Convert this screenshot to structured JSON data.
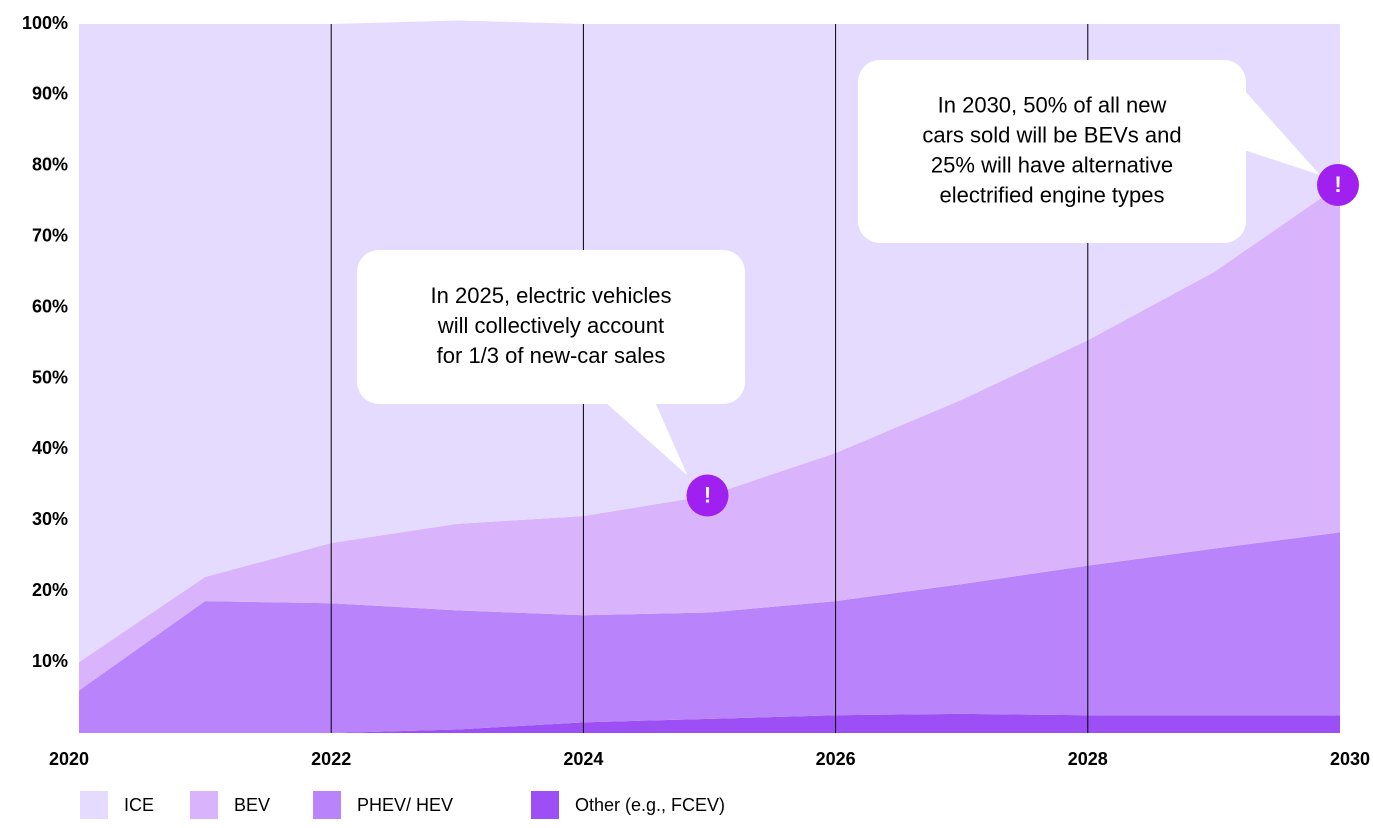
{
  "chart_data": {
    "type": "stacked-area",
    "x": [
      2020,
      2021,
      2022,
      2023,
      2024,
      2025,
      2026,
      2027,
      2028,
      2029,
      2030
    ],
    "series": [
      {
        "name": "Other (e.g., FCEV)",
        "color": "#9c4ff5",
        "values": [
          0,
          0,
          0,
          0.5,
          1.5,
          2,
          2.5,
          2.7,
          2.5,
          2.5,
          2.5
        ]
      },
      {
        "name": "PHEV/ HEV",
        "color": "#b983fb",
        "values": [
          6,
          18.6,
          18.3,
          16.8,
          15.1,
          15,
          16.1,
          18.3,
          21.1,
          23.5,
          25.8
        ]
      },
      {
        "name": "BEV",
        "color": "#d9b4fc",
        "values": [
          4,
          3.4,
          8.5,
          12.2,
          14,
          16.5,
          20.9,
          26,
          31.8,
          39,
          49
        ]
      },
      {
        "name": "ICE",
        "color": "#e4dbff",
        "values": [
          90,
          78,
          73.2,
          71,
          69.4,
          66.5,
          60.5,
          53,
          44.6,
          35,
          22.7
        ]
      }
    ],
    "legend_order": [
      3,
      2,
      1,
      0
    ],
    "xlim": [
      2020,
      2030
    ],
    "xticks": [
      2020,
      2022,
      2024,
      2026,
      2028,
      2030
    ],
    "ylim": [
      0,
      100
    ],
    "yticks": [
      {
        "value": 10,
        "label": "10%"
      },
      {
        "value": 20,
        "label": "20%"
      },
      {
        "value": 30,
        "label": "30%"
      },
      {
        "value": 40,
        "label": "40%"
      },
      {
        "value": 50,
        "label": "50%"
      },
      {
        "value": 60,
        "label": "60%"
      },
      {
        "value": 70,
        "label": "70%"
      },
      {
        "value": 80,
        "label": "80%"
      },
      {
        "value": 90,
        "label": "90%"
      },
      {
        "value": 100,
        "label": "100%"
      }
    ],
    "grid": true,
    "annotations": [
      {
        "x": 2025,
        "y": 33.5,
        "marker": "!",
        "lines": [
          "In 2025, electric vehicles",
          "will collectively account",
          "for 1/3 of new-car sales"
        ]
      },
      {
        "x": 2030,
        "y": 77.3,
        "marker": "!",
        "lines": [
          "In 2030, 50% of all new",
          "cars sold will be BEVs and",
          "25% will have alternative",
          "electrified engine types"
        ]
      }
    ]
  }
}
